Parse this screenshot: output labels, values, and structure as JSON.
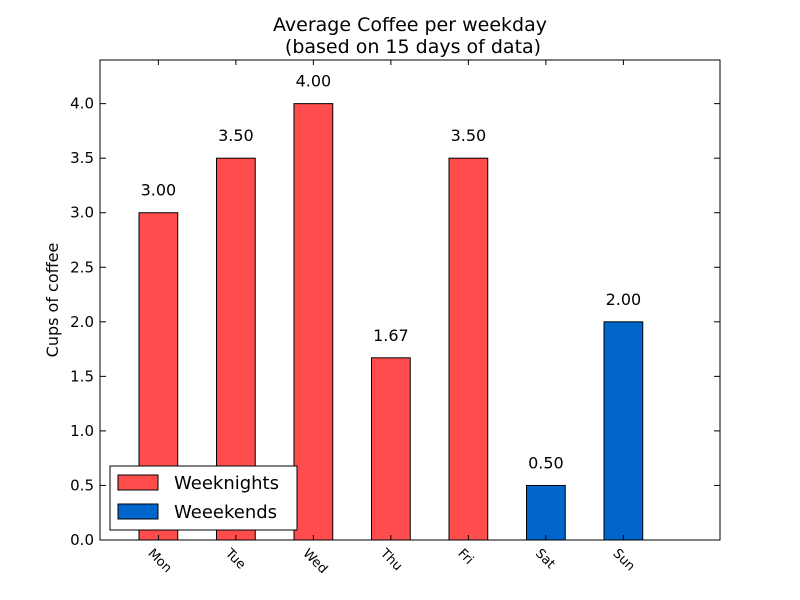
{
  "chart_data": {
    "type": "bar",
    "title": "Average Coffee per weekday",
    "subtitle": "(based on 15 days of data)",
    "xlabel": "",
    "ylabel": "Cups of coffee",
    "ylim": [
      0,
      4.4
    ],
    "yticks": [
      "0.0",
      "0.5",
      "1.0",
      "1.5",
      "2.0",
      "2.5",
      "3.0",
      "3.5",
      "4.0"
    ],
    "categories": [
      "Mon",
      "Tue",
      "Wed",
      "Thu",
      "Fri",
      "Sat",
      "Sun"
    ],
    "values": [
      3.0,
      3.5,
      4.0,
      1.67,
      3.5,
      0.5,
      2.0
    ],
    "value_labels": [
      "3.00",
      "3.50",
      "4.00",
      "1.67",
      "3.50",
      "0.50",
      "2.00"
    ],
    "groups": [
      "weeknights",
      "weeknights",
      "weeknights",
      "weeknights",
      "weeknights",
      "weekends",
      "weekends"
    ],
    "series": [
      {
        "key": "weeknights",
        "name": "Weeknights",
        "color": "#ff4c4c"
      },
      {
        "key": "weekends",
        "name": "Weeekends",
        "color": "#0066cc"
      }
    ],
    "legend_position": "lower-left",
    "grid": false
  }
}
